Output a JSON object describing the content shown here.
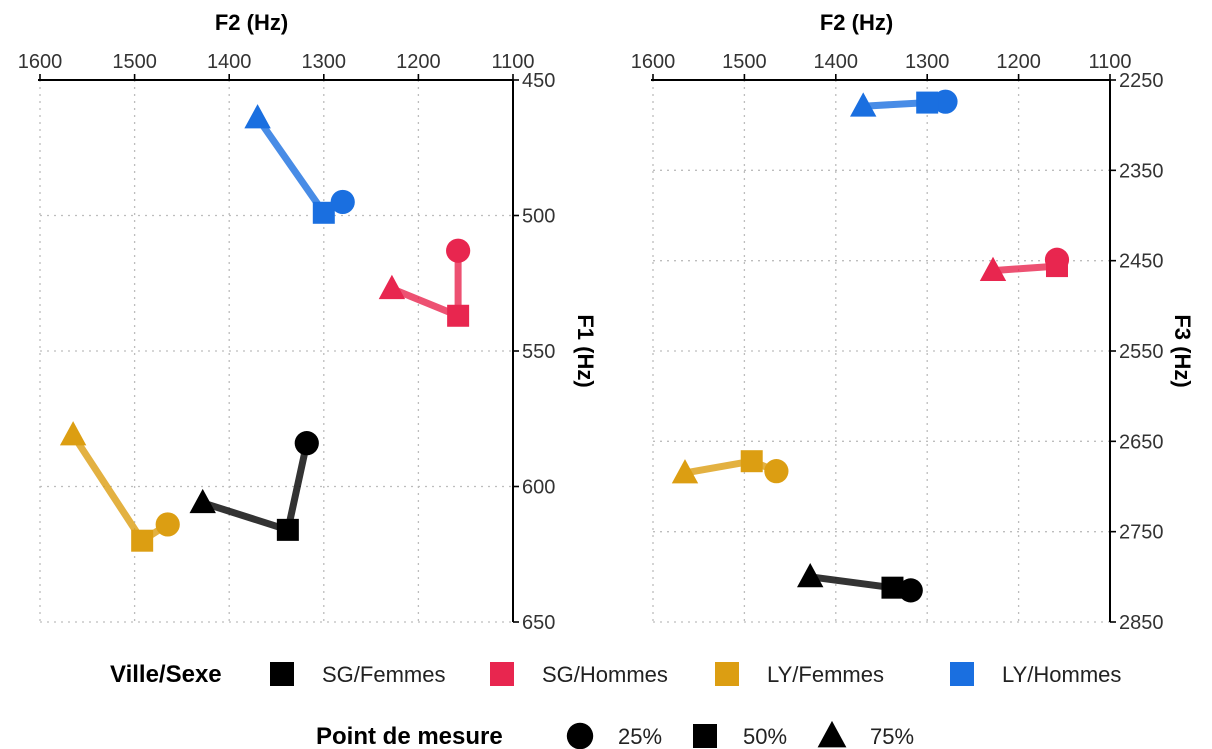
{
  "chart_data": [
    {
      "type": "line",
      "xlabel": "F2 (Hz)",
      "ylabel": "F1 (Hz)",
      "xlim": [
        1600,
        1100
      ],
      "ylim": [
        450,
        650
      ],
      "x_reversed": true,
      "y_reversed": true,
      "x_ticks": [
        "1600",
        "1500",
        "1400",
        "1300",
        "1200",
        "1100"
      ],
      "y_ticks": [
        "450",
        "500",
        "550",
        "600",
        "650"
      ],
      "grid": true,
      "series": [
        {
          "name": "LY/Hommes",
          "color": "#1a6fe0",
          "points": [
            {
              "point": "25%",
              "x": 1280,
              "y": 495
            },
            {
              "point": "50%",
              "x": 1300,
              "y": 499
            },
            {
              "point": "75%",
              "x": 1370,
              "y": 464
            }
          ]
        },
        {
          "name": "SG/Hommes",
          "color": "#e8264f",
          "points": [
            {
              "point": "25%",
              "x": 1158,
              "y": 513
            },
            {
              "point": "50%",
              "x": 1158,
              "y": 537
            },
            {
              "point": "75%",
              "x": 1228,
              "y": 527
            }
          ]
        },
        {
          "name": "LY/Femmes",
          "color": "#dc9e12",
          "points": [
            {
              "point": "25%",
              "x": 1465,
              "y": 614
            },
            {
              "point": "50%",
              "x": 1492,
              "y": 620
            },
            {
              "point": "75%",
              "x": 1565,
              "y": 581
            }
          ]
        },
        {
          "name": "SG/Femmes",
          "color": "#000000",
          "points": [
            {
              "point": "25%",
              "x": 1318,
              "y": 584
            },
            {
              "point": "50%",
              "x": 1338,
              "y": 616
            },
            {
              "point": "75%",
              "x": 1428,
              "y": 606
            }
          ]
        }
      ]
    },
    {
      "type": "line",
      "xlabel": "F2 (Hz)",
      "ylabel": "F3 (Hz)",
      "xlim": [
        1600,
        1100
      ],
      "ylim": [
        2250,
        2850
      ],
      "x_reversed": true,
      "y_reversed": true,
      "x_ticks": [
        "1600",
        "1500",
        "1400",
        "1300",
        "1200",
        "1100"
      ],
      "y_ticks": [
        "2250",
        "2350",
        "2450",
        "2550",
        "2650",
        "2750",
        "2850"
      ],
      "grid": true,
      "series": [
        {
          "name": "LY/Hommes",
          "color": "#1a6fe0",
          "points": [
            {
              "point": "25%",
              "x": 1280,
              "y": 2274
            },
            {
              "point": "50%",
              "x": 1300,
              "y": 2275
            },
            {
              "point": "75%",
              "x": 1370,
              "y": 2279
            }
          ]
        },
        {
          "name": "SG/Hommes",
          "color": "#e8264f",
          "points": [
            {
              "point": "25%",
              "x": 1158,
              "y": 2449
            },
            {
              "point": "50%",
              "x": 1158,
              "y": 2456
            },
            {
              "point": "75%",
              "x": 1228,
              "y": 2461
            }
          ]
        },
        {
          "name": "LY/Femmes",
          "color": "#dc9e12",
          "points": [
            {
              "point": "25%",
              "x": 1465,
              "y": 2683
            },
            {
              "point": "50%",
              "x": 1492,
              "y": 2672
            },
            {
              "point": "75%",
              "x": 1565,
              "y": 2685
            }
          ]
        },
        {
          "name": "SG/Femmes",
          "color": "#000000",
          "points": [
            {
              "point": "25%",
              "x": 1318,
              "y": 2815
            },
            {
              "point": "50%",
              "x": 1338,
              "y": 2812
            },
            {
              "point": "75%",
              "x": 1428,
              "y": 2800
            }
          ]
        }
      ]
    }
  ],
  "legend": {
    "group_title": "Ville/Sexe",
    "groups": [
      {
        "label": "SG/Femmes",
        "color": "#000000"
      },
      {
        "label": "SG/Hommes",
        "color": "#e8264f"
      },
      {
        "label": "LY/Femmes",
        "color": "#dc9e12"
      },
      {
        "label": "LY/Hommes",
        "color": "#1a6fe0"
      }
    ],
    "shape_title": "Point de mesure",
    "shapes": [
      {
        "label": "25%",
        "shape": "circle"
      },
      {
        "label": "50%",
        "shape": "square"
      },
      {
        "label": "75%",
        "shape": "triangle"
      }
    ]
  }
}
